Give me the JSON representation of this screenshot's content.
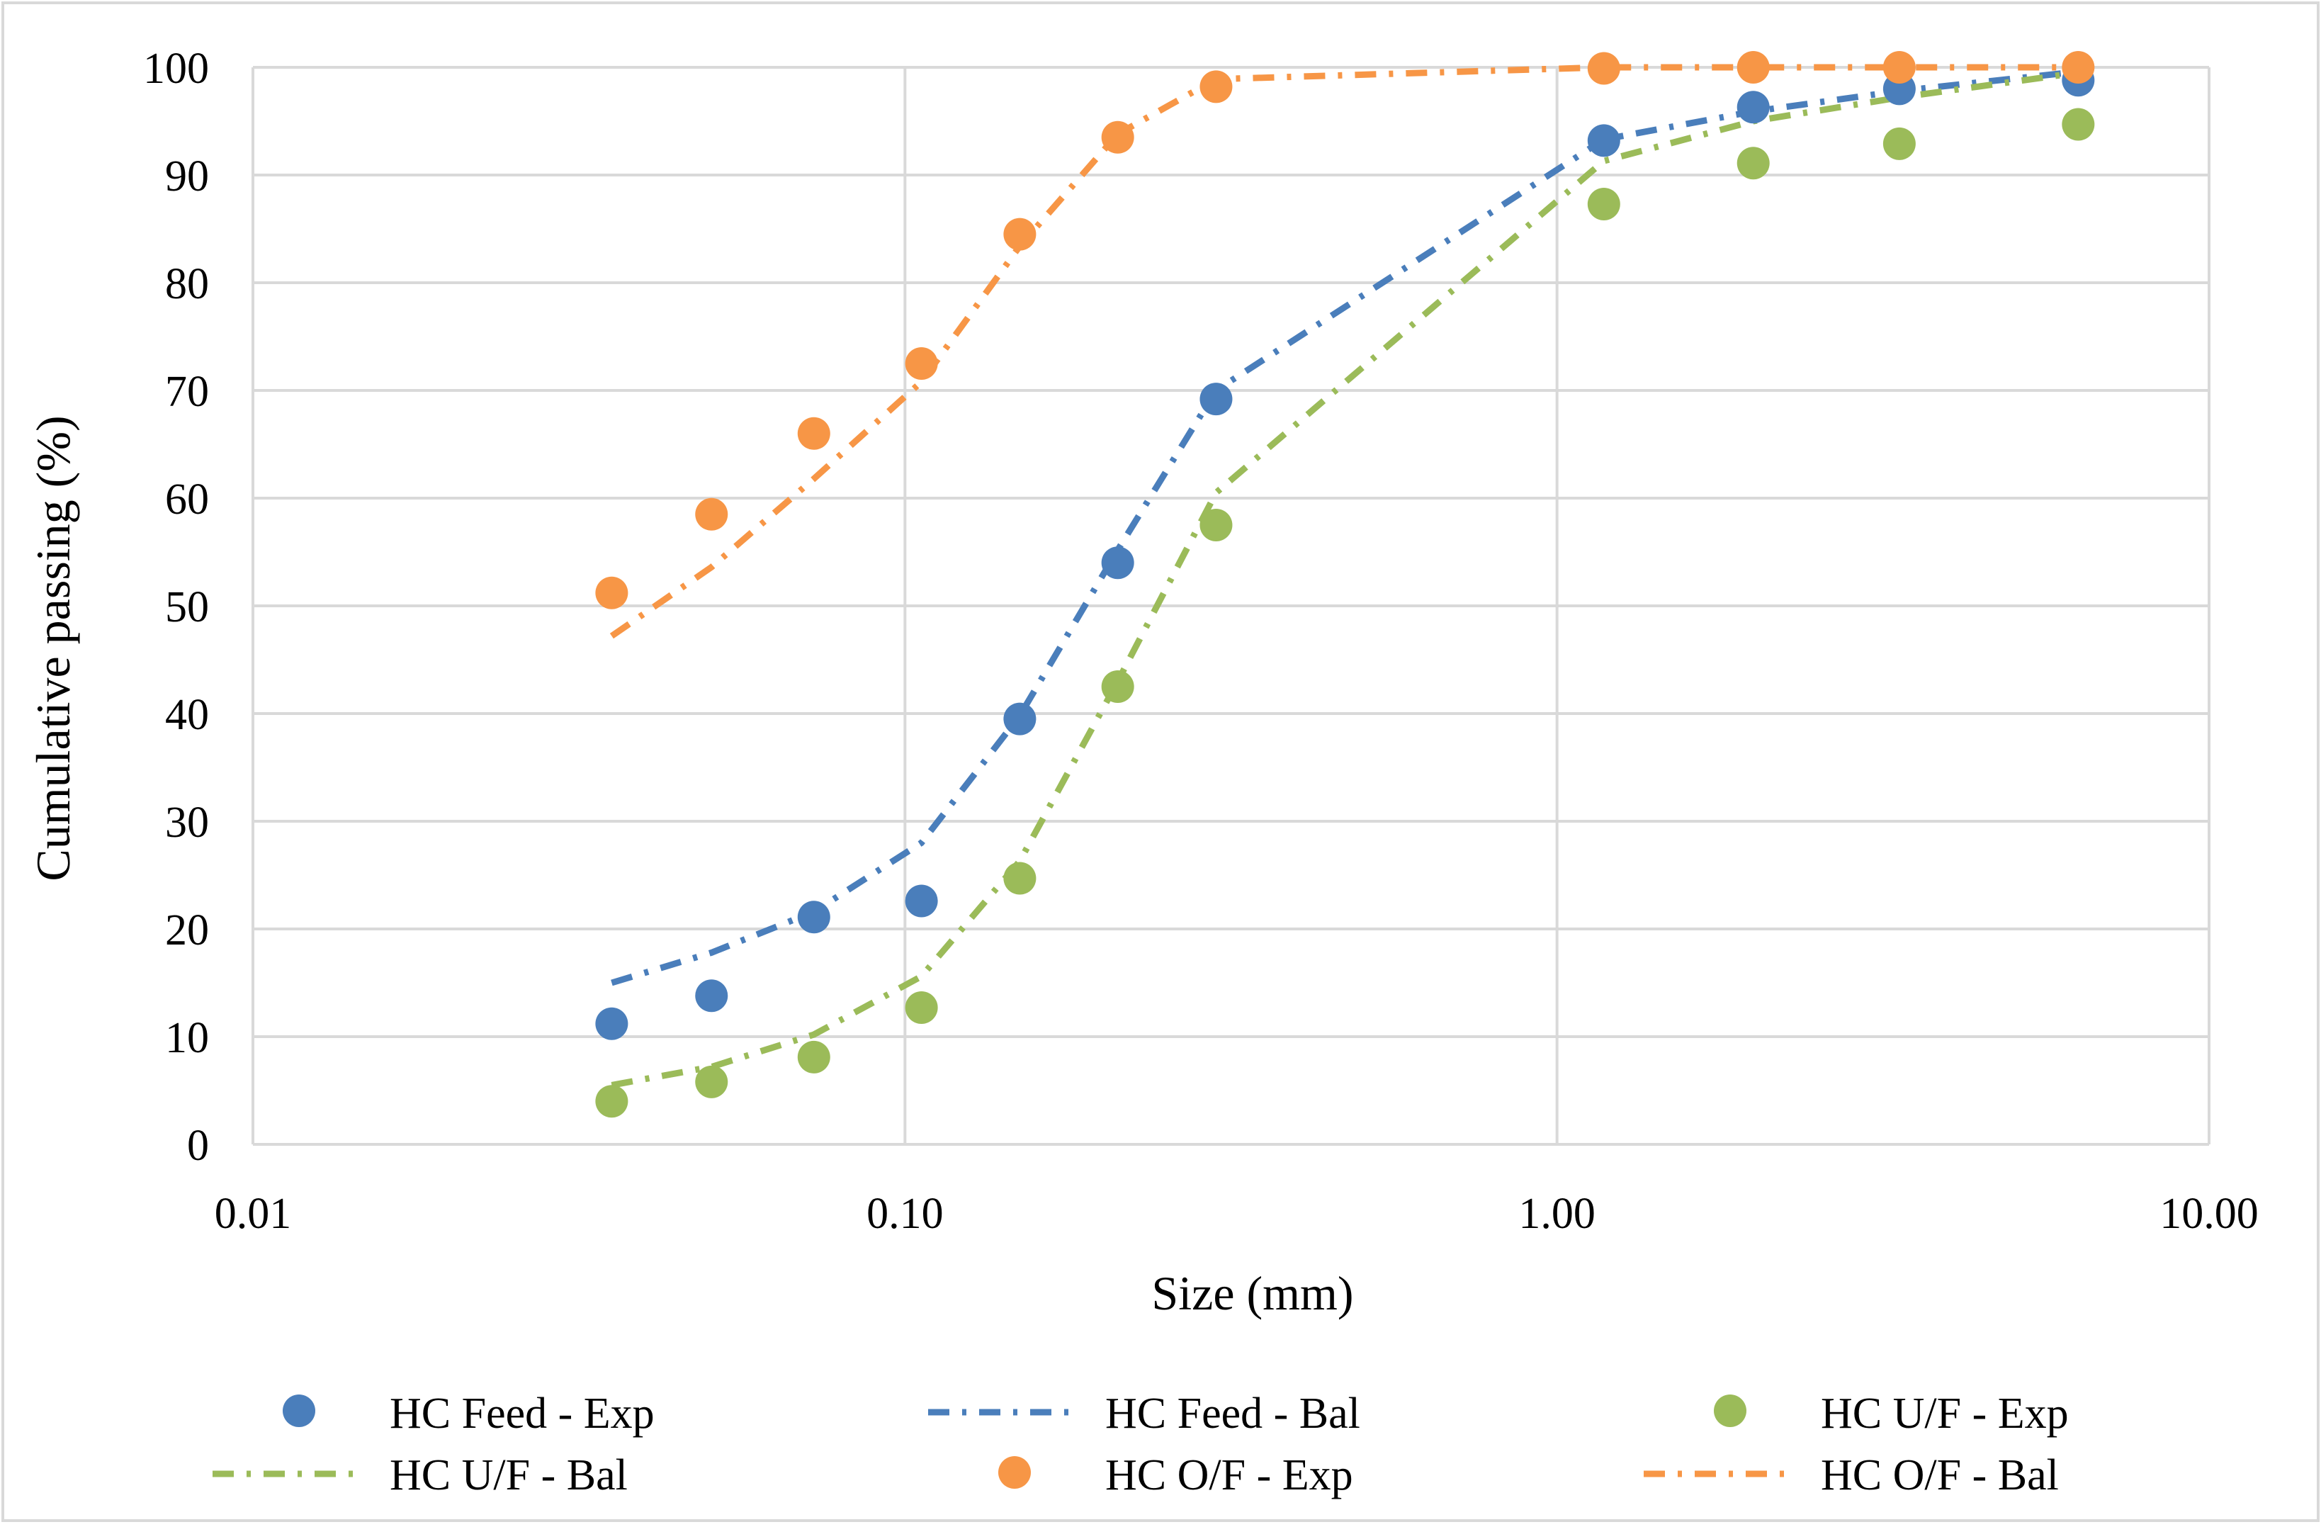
{
  "chart_data": {
    "type": "scatter",
    "title": "",
    "xlabel": "Size (mm)",
    "ylabel": "Cumulative passing (%)",
    "xscale": "log",
    "xlim": [
      0.01,
      10
    ],
    "ylim": [
      0,
      100
    ],
    "xticks": [
      0.01,
      0.1,
      1,
      10
    ],
    "xtick_labels": [
      "0.01",
      "0.10",
      "1.00",
      "10.00"
    ],
    "yticks": [
      0,
      10,
      20,
      30,
      40,
      50,
      60,
      70,
      80,
      90,
      100
    ],
    "ytick_labels": [
      "0",
      "10",
      "20",
      "30",
      "40",
      "50",
      "60",
      "70",
      "80",
      "90",
      "100"
    ],
    "grid": true,
    "legend_position": "bottom",
    "series": [
      {
        "name": "HC Feed - Exp",
        "kind": "marker",
        "color": "#4a7ebb",
        "x": [
          0.0355,
          0.0505,
          0.0725,
          0.106,
          0.15,
          0.212,
          0.3,
          1.18,
          2.0,
          3.35,
          6.3
        ],
        "y": [
          11.2,
          13.8,
          21.1,
          22.6,
          39.5,
          54.0,
          69.2,
          93.2,
          96.3,
          98.0,
          98.8
        ]
      },
      {
        "name": "HC Feed - Bal",
        "kind": "line",
        "color": "#4a7ebb",
        "x": [
          0.0355,
          0.0505,
          0.0725,
          0.106,
          0.15,
          0.212,
          0.3,
          1.18,
          2.0,
          3.35,
          6.3
        ],
        "y": [
          15.0,
          17.8,
          21.6,
          28.0,
          39.8,
          55.2,
          70.0,
          93.3,
          95.9,
          97.8,
          99.6
        ]
      },
      {
        "name": "HC U/F - Exp",
        "kind": "marker",
        "color": "#9bbb59",
        "x": [
          0.0355,
          0.0505,
          0.0725,
          0.106,
          0.15,
          0.212,
          0.3,
          1.18,
          2.0,
          3.35,
          6.3
        ],
        "y": [
          4.0,
          5.8,
          8.1,
          12.7,
          24.7,
          42.5,
          57.5,
          87.3,
          91.1,
          92.9,
          94.7
        ]
      },
      {
        "name": "HC U/F - Bal",
        "kind": "line",
        "color": "#9bbb59",
        "x": [
          0.0355,
          0.0505,
          0.0725,
          0.106,
          0.15,
          0.212,
          0.3,
          1.18,
          2.0,
          3.35,
          6.3
        ],
        "y": [
          5.5,
          7.2,
          10.2,
          15.6,
          26.3,
          43.0,
          60.5,
          91.3,
          95.0,
          97.2,
          99.5
        ]
      },
      {
        "name": "HC O/F - Exp",
        "kind": "marker",
        "color": "#f79646",
        "x": [
          0.0355,
          0.0505,
          0.0725,
          0.106,
          0.15,
          0.212,
          0.3,
          1.18,
          2.0,
          3.35,
          6.3
        ],
        "y": [
          51.2,
          58.5,
          66.0,
          72.5,
          84.5,
          93.5,
          98.2,
          99.9,
          100.0,
          100.0,
          100.0
        ]
      },
      {
        "name": "HC O/F - Bal",
        "kind": "line",
        "color": "#f79646",
        "x": [
          0.0355,
          0.0505,
          0.0725,
          0.106,
          0.15,
          0.212,
          0.3,
          1.18,
          2.0,
          3.35,
          6.3
        ],
        "y": [
          47.2,
          53.6,
          61.8,
          70.8,
          83.4,
          93.8,
          98.9,
          100.0,
          100.0,
          100.0,
          100.0
        ]
      }
    ],
    "legend_order": [
      0,
      1,
      2,
      3,
      4,
      5
    ]
  }
}
